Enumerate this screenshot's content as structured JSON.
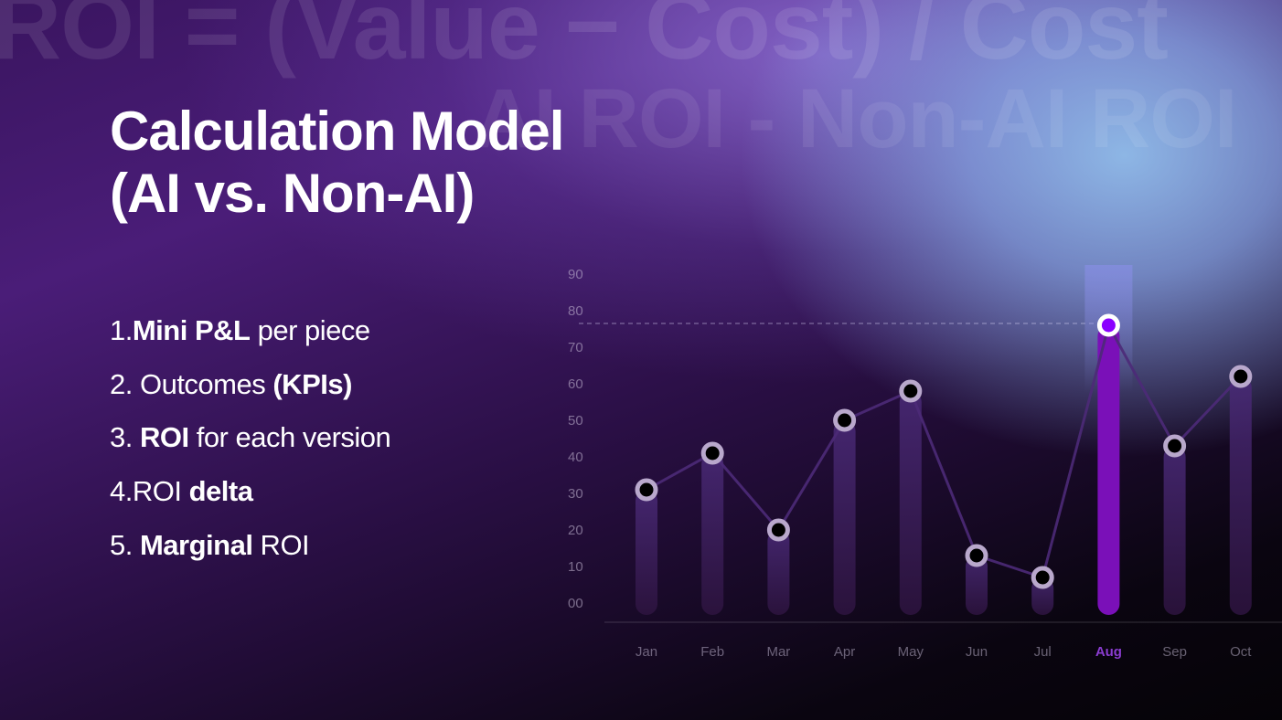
{
  "background_text": {
    "formula": "ROI = (Value − Cost) / Cost",
    "delta_formula": "AI ROI - Non-AI ROI"
  },
  "title": {
    "line1": "Calculation Model",
    "line2": "(AI vs. Non-AI)"
  },
  "list": [
    {
      "num": "1.",
      "parts": [
        {
          "t": "Mini P&L",
          "b": true
        },
        {
          "t": " per piece",
          "b": false
        }
      ]
    },
    {
      "num": "2.",
      "parts": [
        {
          "t": "Outcomes ",
          "b": false
        },
        {
          "t": "(KPIs)",
          "b": true
        }
      ]
    },
    {
      "num": "3.",
      "parts": [
        {
          "t": "ROI",
          "b": true
        },
        {
          "t": " for each version",
          "b": false
        }
      ]
    },
    {
      "num": "4.",
      "parts": [
        {
          "t": "ROI ",
          "b": false
        },
        {
          "t": "delta",
          "b": true
        }
      ]
    },
    {
      "num": "5.",
      "parts": [
        {
          "t": "Marginal",
          "b": true
        },
        {
          "t": " ROI",
          "b": false
        }
      ]
    }
  ],
  "colors": {
    "highlight": "#7a10b8",
    "highlight_dot": "#8a00ff",
    "bar": "#3a1a58",
    "line": "#4c2a78",
    "label": "#8a7a9a",
    "highlight_label": "#8a3cd0"
  },
  "chart_data": {
    "type": "bar+line",
    "categories": [
      "Jan",
      "Feb",
      "Mar",
      "Apr",
      "May",
      "Jun",
      "Jul",
      "Aug",
      "Sep",
      "Oct"
    ],
    "values": [
      31,
      41,
      20,
      50,
      58,
      13,
      7,
      76,
      43,
      62
    ],
    "highlight": "Aug",
    "reference_line": 76,
    "ylim": [
      0,
      90
    ],
    "yticks": [
      "00",
      "10",
      "20",
      "30",
      "40",
      "50",
      "60",
      "70",
      "80",
      "90"
    ],
    "grid": false,
    "title": "",
    "xlabel": "",
    "ylabel": ""
  }
}
